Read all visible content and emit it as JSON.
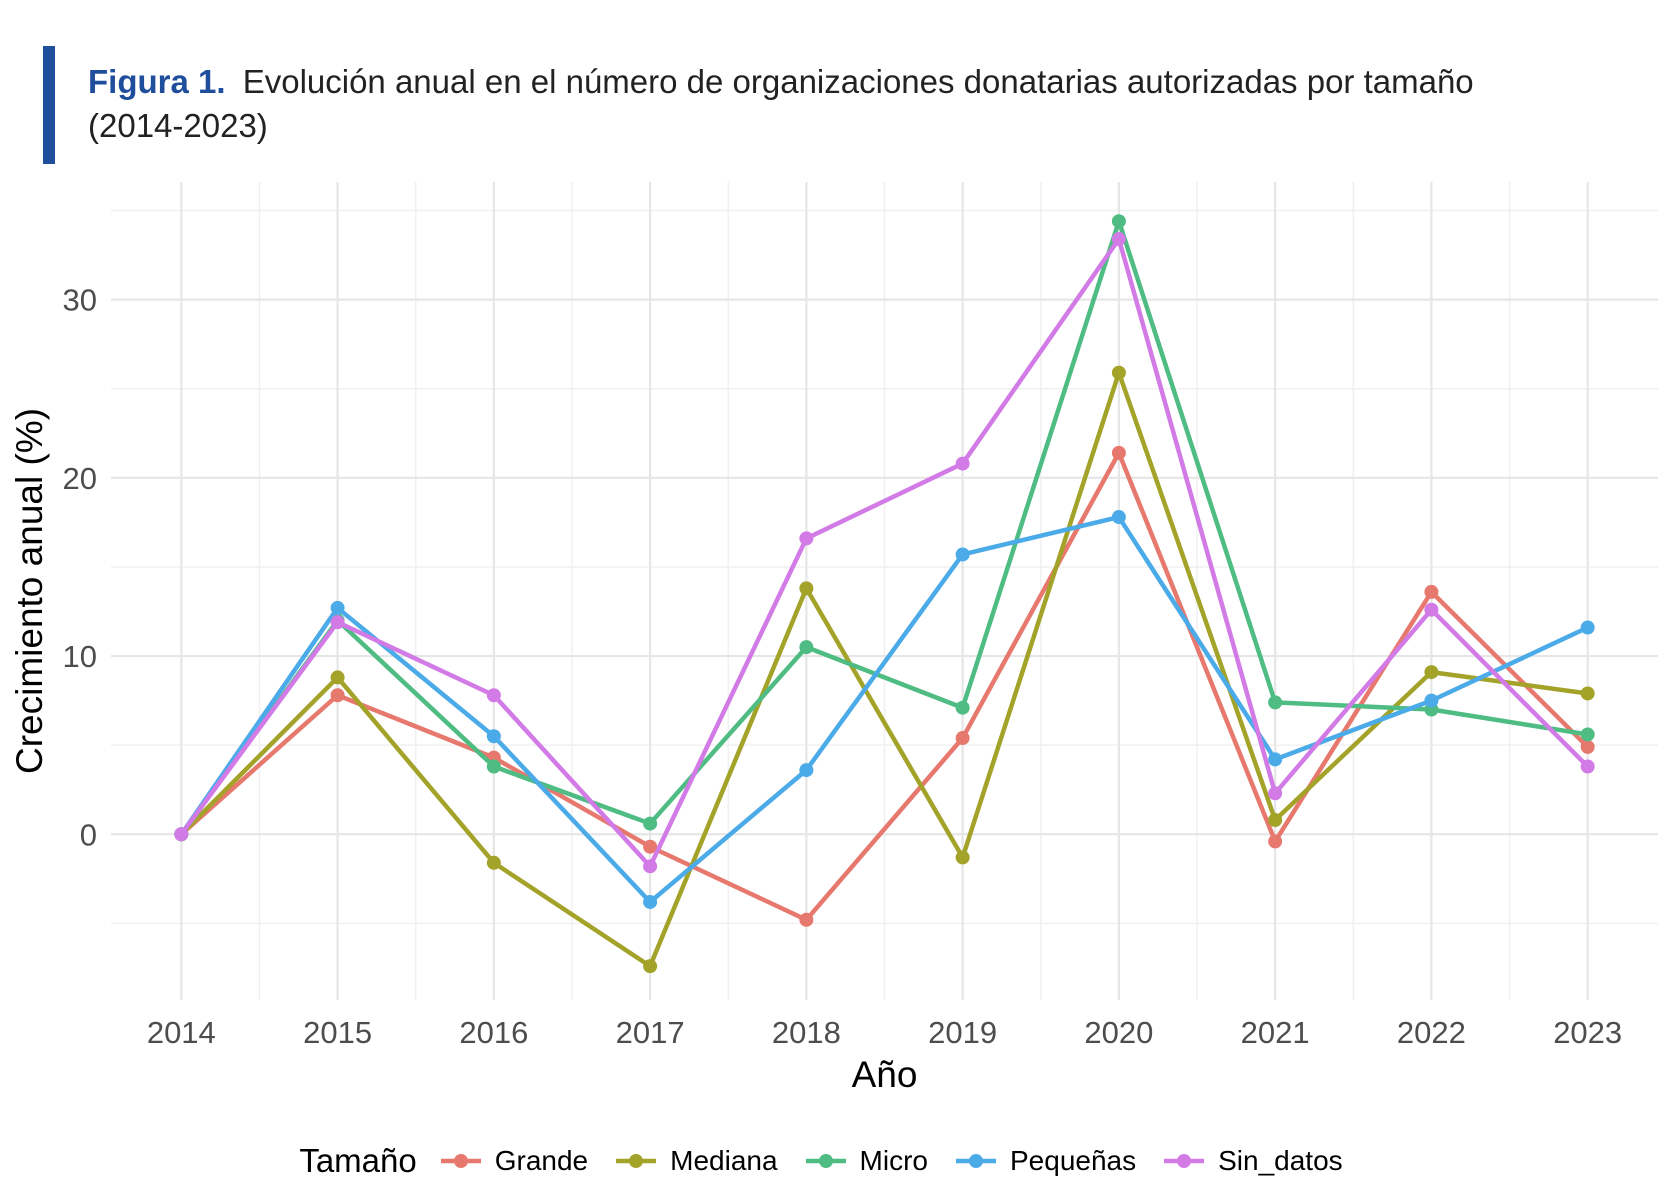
{
  "caption": {
    "label": "Figura 1.",
    "text": "Evolución anual en el número de organizaciones donatarias autorizadas por tamaño (2014-2023)"
  },
  "chart_data": {
    "type": "line",
    "xlabel": "Año",
    "ylabel": "Crecimiento anual (%)",
    "x": [
      2014,
      2015,
      2016,
      2017,
      2018,
      2019,
      2020,
      2021,
      2022,
      2023
    ],
    "xlim": [
      2013.55,
      2023.45
    ],
    "ylim": [
      -9.3,
      36.6
    ],
    "yticks": [
      0,
      10,
      20,
      30
    ],
    "grid": true,
    "legend": {
      "title": "Tamaño",
      "position": "bottom"
    },
    "series": [
      {
        "name": "Grande",
        "color": "#E7786D",
        "values": [
          0,
          7.8,
          4.3,
          -0.7,
          -4.8,
          5.4,
          21.4,
          -0.4,
          13.6,
          4.9
        ]
      },
      {
        "name": "Mediana",
        "color": "#A3A32A",
        "values": [
          0,
          8.8,
          -1.6,
          -7.4,
          13.8,
          -1.3,
          25.9,
          0.8,
          9.1,
          7.9
        ]
      },
      {
        "name": "Micro",
        "color": "#4EBC83",
        "values": [
          0,
          12.0,
          3.8,
          0.6,
          10.5,
          7.1,
          34.4,
          7.4,
          7.0,
          5.6
        ]
      },
      {
        "name": "Pequeñas",
        "color": "#4BAAE8",
        "values": [
          0,
          12.7,
          5.5,
          -3.8,
          3.6,
          15.7,
          17.8,
          4.2,
          7.5,
          11.6
        ]
      },
      {
        "name": "Sin_datos",
        "color": "#D27BE6",
        "values": [
          0,
          11.9,
          7.8,
          -1.8,
          16.6,
          20.8,
          33.4,
          2.3,
          12.6,
          3.8
        ]
      }
    ]
  }
}
